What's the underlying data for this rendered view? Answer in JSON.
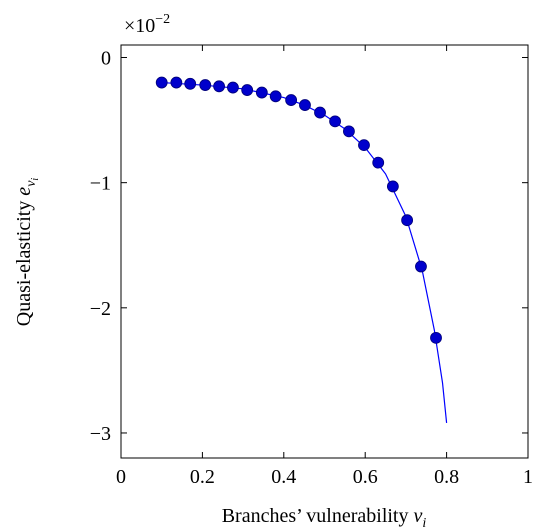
{
  "chart_data": {
    "type": "scatter",
    "y_multiplier": {
      "base": "×10",
      "exponent": "−2"
    },
    "x_label": {
      "text": "Branches’ vulnerability",
      "var": "v",
      "sub": "i"
    },
    "y_label": {
      "text": "Quasi-elasticity",
      "var": "e",
      "sub": "v",
      "subsub": "i"
    },
    "xlim": [
      0,
      1
    ],
    "ylim": [
      -3.2,
      0.1
    ],
    "xticks": [
      0,
      0.2,
      0.4,
      0.6,
      0.8,
      1
    ],
    "yticks": [
      {
        "value": 0,
        "label": "0"
      },
      {
        "value": -1,
        "label": "−1"
      },
      {
        "value": -2,
        "label": "−2"
      },
      {
        "value": -3,
        "label": "−3"
      }
    ],
    "series": [
      {
        "kind": "markers",
        "color": "#0000cc",
        "x": [
          0.1,
          0.136,
          0.17,
          0.207,
          0.241,
          0.275,
          0.31,
          0.346,
          0.38,
          0.418,
          0.452,
          0.489,
          0.526,
          0.56,
          0.597,
          0.632,
          0.668,
          0.703,
          0.737,
          0.774
        ],
        "values": [
          -0.2,
          -0.2,
          -0.21,
          -0.22,
          -0.23,
          -0.24,
          -0.26,
          -0.28,
          -0.31,
          -0.34,
          -0.38,
          -0.44,
          -0.51,
          -0.59,
          -0.7,
          -0.84,
          -1.03,
          -1.3,
          -1.67,
          -2.24
        ]
      },
      {
        "kind": "line",
        "color": "#0000ff",
        "x": [
          0.1,
          0.2,
          0.3,
          0.4,
          0.45,
          0.5,
          0.55,
          0.6,
          0.65,
          0.7,
          0.74,
          0.77,
          0.79,
          0.8
        ],
        "values": [
          -0.2,
          -0.22,
          -0.25,
          -0.32,
          -0.38,
          -0.46,
          -0.57,
          -0.72,
          -0.93,
          -1.27,
          -1.7,
          -2.18,
          -2.6,
          -2.92
        ]
      }
    ]
  }
}
